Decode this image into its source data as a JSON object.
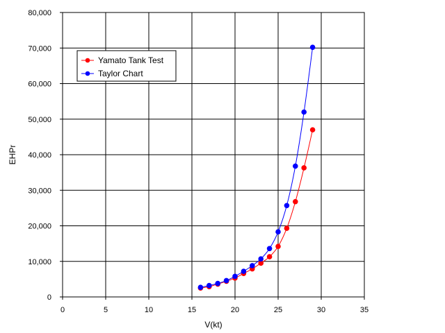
{
  "chart_data": {
    "type": "line",
    "title": "",
    "xlabel": "V(kt)",
    "ylabel": "EHPr",
    "xlim": [
      0,
      35
    ],
    "ylim": [
      0,
      80000
    ],
    "x_ticks": [
      0,
      5,
      10,
      15,
      20,
      25,
      30,
      35
    ],
    "y_ticks": [
      0,
      10000,
      20000,
      30000,
      40000,
      50000,
      60000,
      70000,
      80000
    ],
    "y_tick_labels": [
      "0",
      "10,000",
      "20,000",
      "30,000",
      "40,000",
      "50,000",
      "60,000",
      "70,000",
      "80,000"
    ],
    "grid": true,
    "legend_position": "top-left",
    "series": [
      {
        "name": "Yamato Tank Test",
        "color": "#ff0000",
        "x": [
          16,
          17,
          18,
          19,
          20,
          21,
          22,
          23,
          24,
          25,
          26,
          27,
          28,
          29
        ],
        "y": [
          2500,
          2900,
          3600,
          4400,
          5300,
          6600,
          7900,
          9500,
          11300,
          14200,
          19300,
          26800,
          36300,
          47000
        ]
      },
      {
        "name": "Taylor Chart",
        "color": "#0000ff",
        "x": [
          16,
          17,
          18,
          19,
          20,
          21,
          22,
          23,
          24,
          25,
          26,
          27,
          28,
          29
        ],
        "y": [
          2700,
          3200,
          3800,
          4600,
          5800,
          7200,
          8800,
          10700,
          13600,
          18300,
          25700,
          36800,
          52000,
          70200
        ]
      }
    ]
  }
}
